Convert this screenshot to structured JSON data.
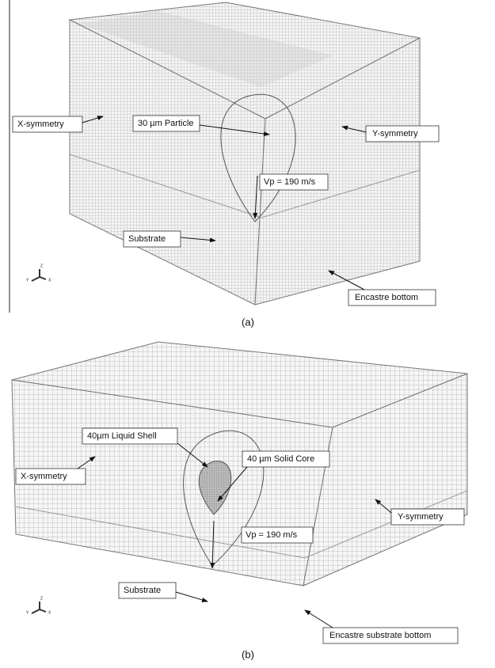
{
  "panels": [
    {
      "labels": [
        "X-symmetry",
        "30 µm Particle",
        "Y-symmetry",
        "Vp = 190 m/s",
        "Substrate",
        "Encastre bottom"
      ],
      "axes": [
        "Y",
        "Z",
        "X"
      ],
      "caption": "(a)"
    },
    {
      "labels": [
        "40µm Liquid Shell",
        "40 µm Solid Core",
        "X-symmetry",
        "Y-symmetry",
        "Vp = 190 m/s",
        "Substrate",
        "Encastre substrate bottom"
      ],
      "axes": [
        "Y",
        "Z",
        "X"
      ],
      "caption": "(b)"
    }
  ]
}
